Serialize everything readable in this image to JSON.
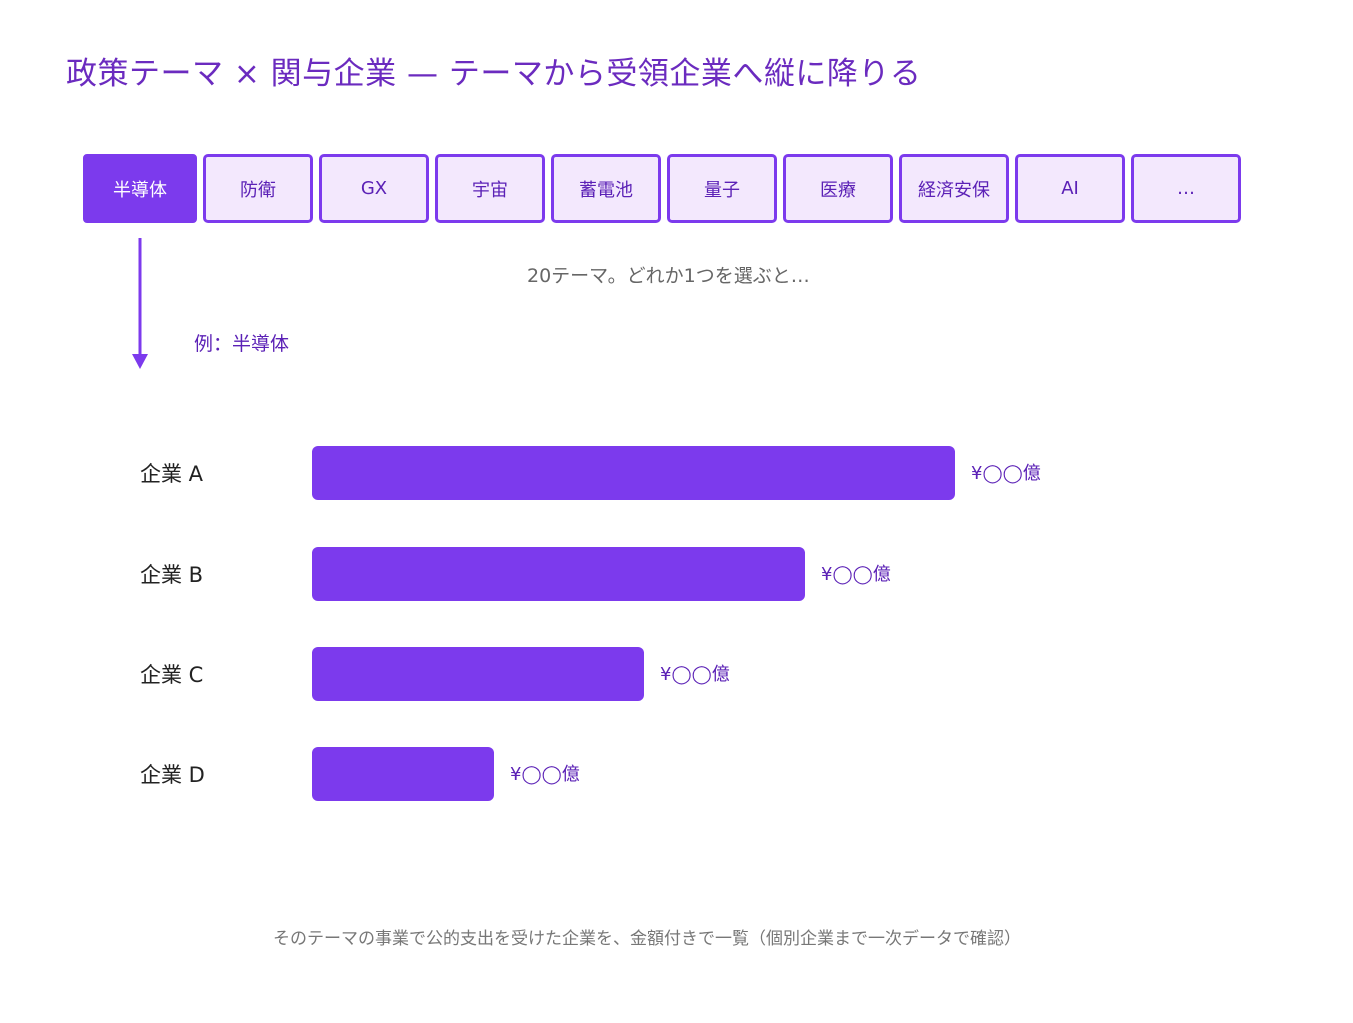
{
  "title": "政策テーマ × 関与企業 — テーマから受領企業へ縦に降りる",
  "tabs": [
    {
      "label": "半導体",
      "active": true
    },
    {
      "label": "防衛",
      "active": false
    },
    {
      "label": "GX",
      "active": false
    },
    {
      "label": "宇宙",
      "active": false
    },
    {
      "label": "蓄電池",
      "active": false
    },
    {
      "label": "量子",
      "active": false
    },
    {
      "label": "医療",
      "active": false
    },
    {
      "label": "経済安保",
      "active": false
    },
    {
      "label": "AI",
      "active": false
    },
    {
      "label": "…",
      "active": false
    }
  ],
  "theme_note": "20テーマ。どれか1つを選ぶと…",
  "example_label": "例：半導体",
  "companies": [
    {
      "name": "企業 A",
      "amount": "¥◯◯億",
      "value": 1.0
    },
    {
      "name": "企業 B",
      "amount": "¥◯◯億",
      "value": 0.766
    },
    {
      "name": "企業 C",
      "amount": "¥◯◯億",
      "value": 0.517
    },
    {
      "name": "企業 D",
      "amount": "¥◯◯億",
      "value": 0.283
    }
  ],
  "caption": "そのテーマの事業で公的支出を受けた企業を、金額付きで一覧（個別企業まで一次データで確認）",
  "colors": {
    "accent": "#7c3aed",
    "tab_fill": "#f3e8fd",
    "title": "#6b2bbf"
  }
}
